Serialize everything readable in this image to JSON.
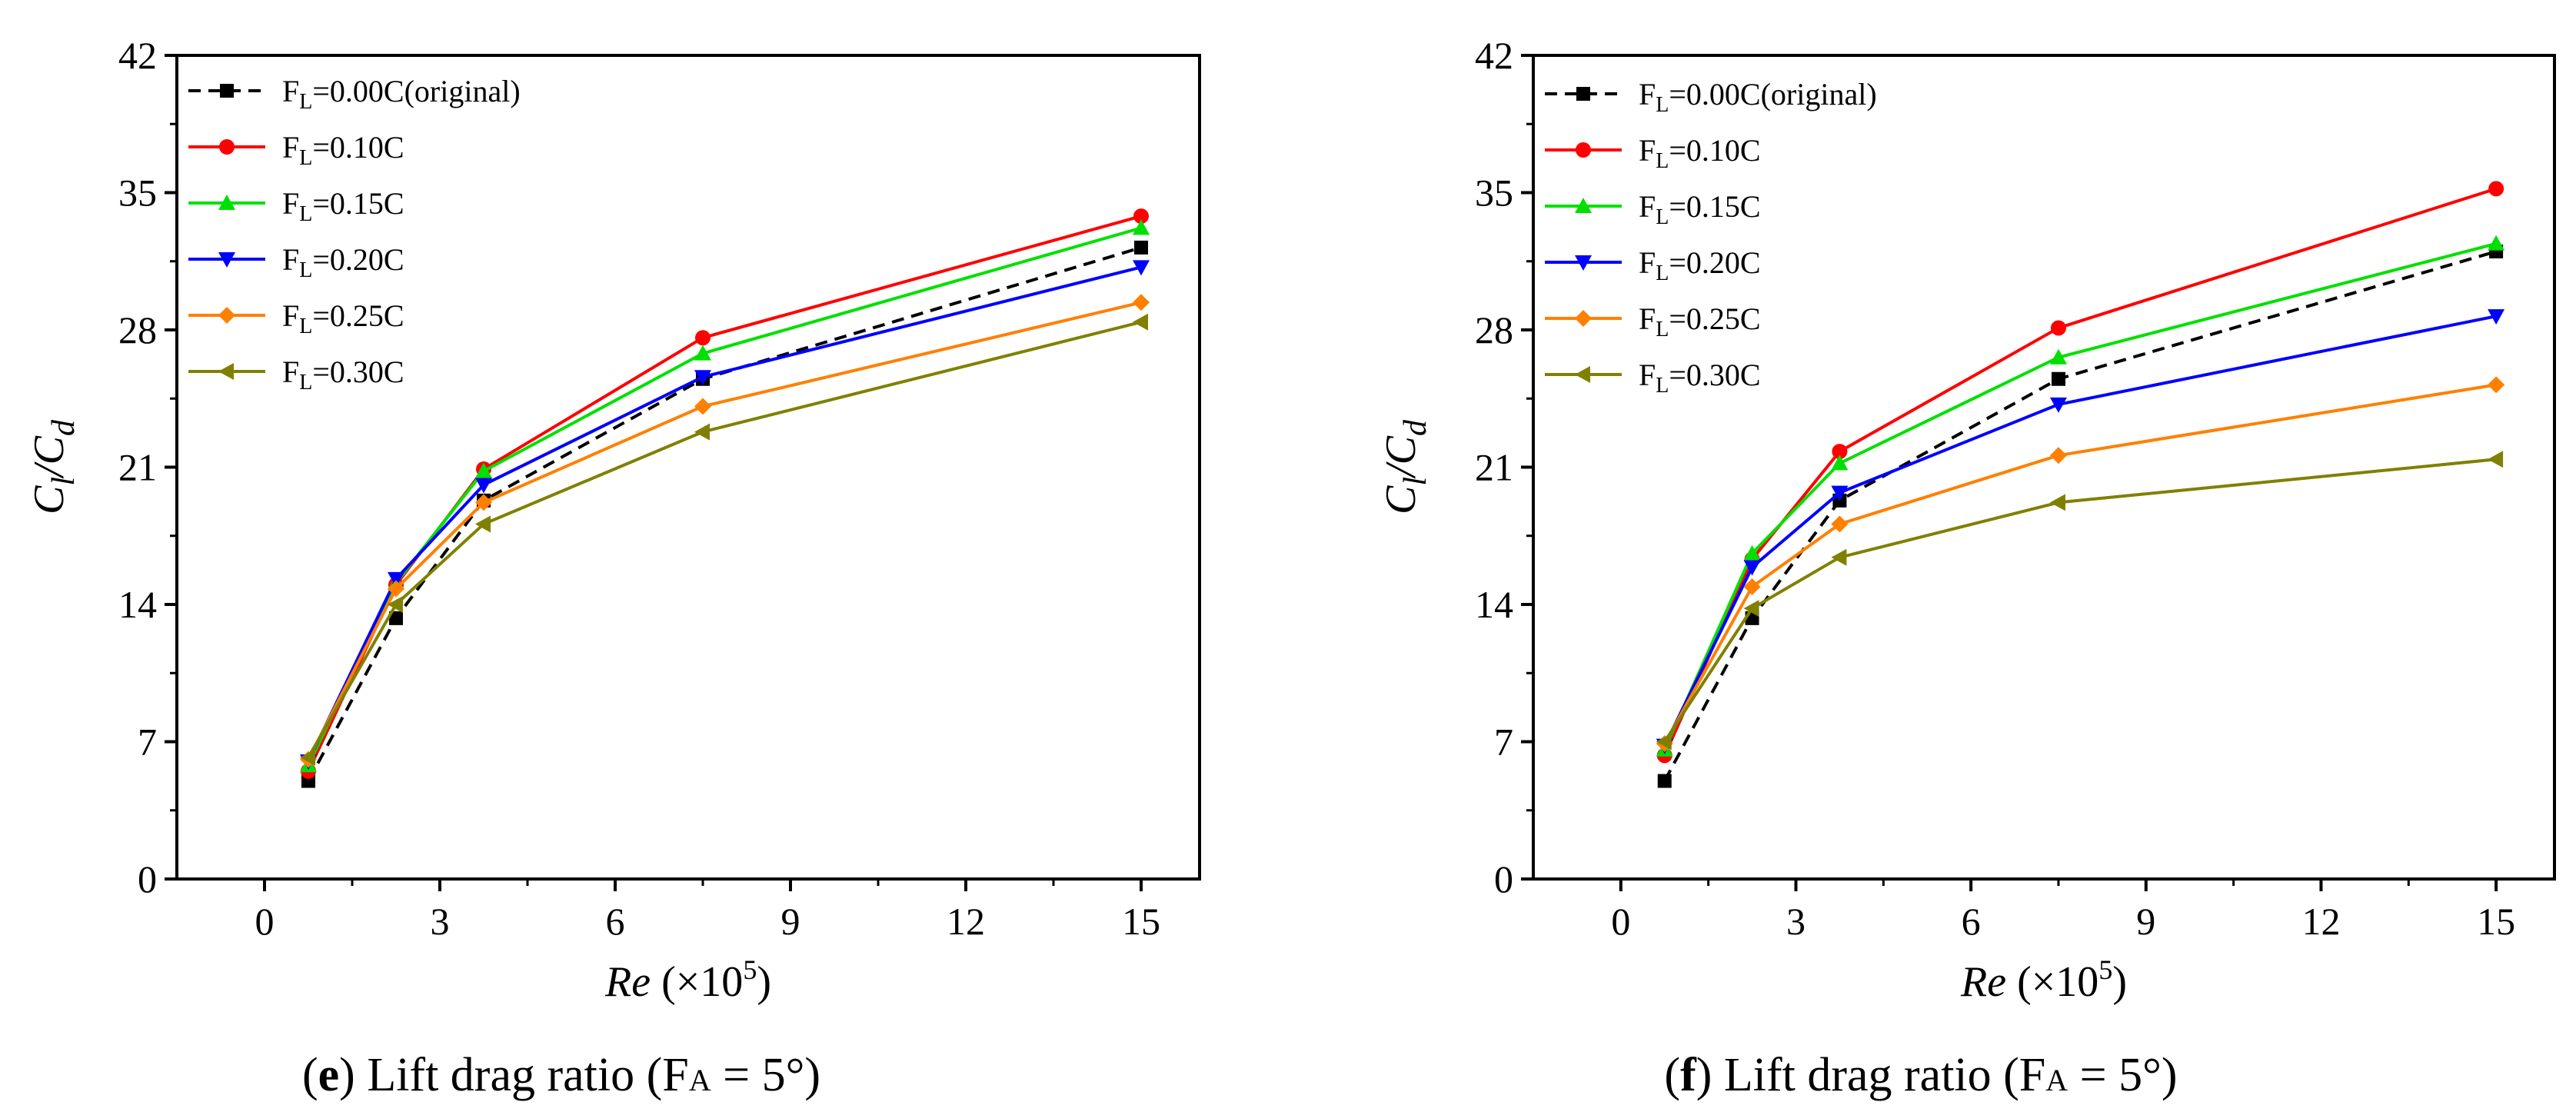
{
  "chart_data": [
    {
      "type": "line",
      "panel": "e",
      "caption": {
        "letter": "e",
        "text": "Lift drag ratio (F",
        "subscript": "A",
        "suffix": " = 5°)"
      },
      "xlabel": {
        "italic": "Re",
        "text": " (×10",
        "sup": "5",
        "close": ")"
      },
      "ylabel": {
        "main": "C",
        "sub1": "l",
        "sep": "/C",
        "sub2": "d"
      },
      "xlim": [
        -1.5,
        16
      ],
      "ylim": [
        0,
        42
      ],
      "xticks": [
        0,
        3,
        6,
        9,
        12,
        15
      ],
      "yticks": [
        0,
        7,
        14,
        21,
        28,
        35,
        42
      ],
      "x": [
        0.75,
        2.25,
        3.75,
        7.5,
        15
      ],
      "legend_position": "top-left",
      "series": [
        {
          "name": "0.00C(original)",
          "prefix": "F",
          "sub": "L",
          "color": "#000000",
          "dashed": true,
          "marker": "square",
          "values": [
            5.0,
            13.3,
            19.3,
            25.5,
            32.2
          ]
        },
        {
          "name": "0.10C",
          "prefix": "F",
          "sub": "L",
          "color": "#ff0000",
          "dashed": false,
          "marker": "circle",
          "values": [
            5.5,
            15.0,
            20.9,
            27.6,
            33.8
          ]
        },
        {
          "name": "0.15C",
          "prefix": "F",
          "sub": "L",
          "color": "#00e000",
          "dashed": false,
          "marker": "triangle-up",
          "values": [
            5.8,
            15.1,
            20.8,
            26.8,
            33.2
          ]
        },
        {
          "name": "0.20C",
          "prefix": "F",
          "sub": "L",
          "color": "#0000ff",
          "dashed": false,
          "marker": "triangle-down",
          "values": [
            6.0,
            15.3,
            20.1,
            25.6,
            31.2
          ]
        },
        {
          "name": "0.25C",
          "prefix": "F",
          "sub": "L",
          "color": "#ff8000",
          "dashed": false,
          "marker": "diamond",
          "values": [
            6.1,
            14.8,
            19.2,
            24.1,
            29.4
          ]
        },
        {
          "name": "0.30C",
          "prefix": "F",
          "sub": "L",
          "color": "#808000",
          "dashed": false,
          "marker": "triangle-left",
          "values": [
            6.2,
            14.0,
            18.1,
            22.8,
            28.4
          ]
        }
      ]
    },
    {
      "type": "line",
      "panel": "f",
      "caption": {
        "letter": "f",
        "text": "Lift drag ratio (F",
        "subscript": "A",
        "suffix": " = 5°)"
      },
      "xlabel": {
        "italic": "Re",
        "text": " (×10",
        "sup": "5",
        "close": ")"
      },
      "ylabel": {
        "main": "C",
        "sub1": "l",
        "sep": "/C",
        "sub2": "d"
      },
      "xlim": [
        -1.5,
        16
      ],
      "ylim": [
        0,
        42
      ],
      "xticks": [
        0,
        3,
        6,
        9,
        12,
        15
      ],
      "yticks": [
        0,
        7,
        14,
        21,
        28,
        35,
        42
      ],
      "x": [
        0.75,
        2.25,
        3.75,
        7.5,
        15
      ],
      "legend_position": "top-left",
      "series": [
        {
          "name": "0.00C(original)",
          "prefix": "F",
          "sub": "L",
          "color": "#000000",
          "dashed": true,
          "marker": "square",
          "values": [
            5.0,
            13.3,
            19.3,
            25.5,
            32.0
          ]
        },
        {
          "name": "0.10C",
          "prefix": "F",
          "sub": "L",
          "color": "#ff0000",
          "dashed": false,
          "marker": "circle",
          "values": [
            6.3,
            16.3,
            21.8,
            28.1,
            35.2
          ]
        },
        {
          "name": "0.15C",
          "prefix": "F",
          "sub": "L",
          "color": "#00e000",
          "dashed": false,
          "marker": "triangle-up",
          "values": [
            6.6,
            16.6,
            21.2,
            26.6,
            32.4
          ]
        },
        {
          "name": "0.20C",
          "prefix": "F",
          "sub": "L",
          "color": "#0000ff",
          "dashed": false,
          "marker": "triangle-down",
          "values": [
            6.8,
            15.9,
            19.7,
            24.2,
            28.7
          ]
        },
        {
          "name": "0.25C",
          "prefix": "F",
          "sub": "L",
          "color": "#ff8000",
          "dashed": false,
          "marker": "diamond",
          "values": [
            6.9,
            14.9,
            18.1,
            21.6,
            25.2
          ]
        },
        {
          "name": "0.30C",
          "prefix": "F",
          "sub": "L",
          "color": "#808000",
          "dashed": false,
          "marker": "triangle-left",
          "values": [
            7.0,
            13.8,
            16.4,
            19.2,
            21.4
          ]
        }
      ]
    }
  ]
}
